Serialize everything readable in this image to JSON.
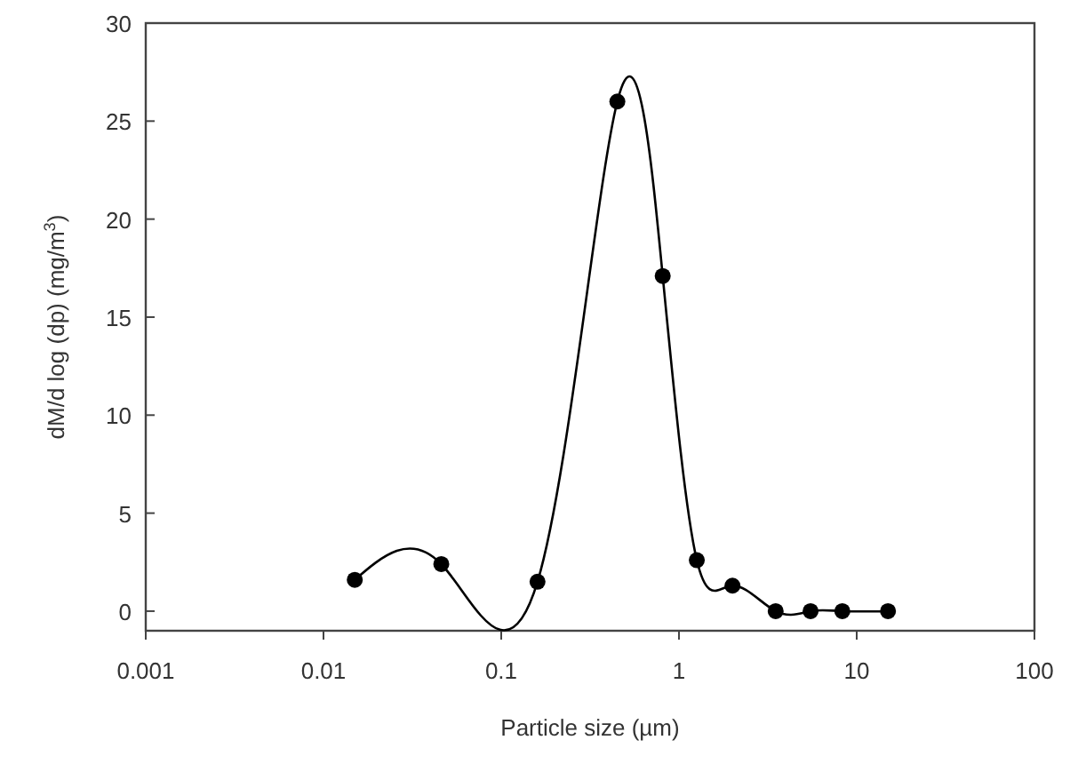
{
  "chart_data": {
    "type": "line",
    "xlabel": "Particle size (µm)",
    "ylabel": "dM/d log (dp) (mg/m$^{3}$)",
    "log": "x",
    "x": [
      0.015,
      0.046,
      0.16,
      0.45,
      0.81,
      1.26,
      2.0,
      3.5,
      5.5,
      8.3,
      15
    ],
    "series": [
      {
        "color": "#000000",
        "values": [
          1.6,
          2.4,
          1.5,
          26,
          17.1,
          2.6,
          1.3,
          0,
          0,
          0,
          0
        ]
      }
    ],
    "xlim": [
      0.001,
      100
    ],
    "xticks": [
      0.001,
      0.01,
      0.1,
      1,
      10,
      100
    ],
    "ylim": [
      -1,
      30
    ],
    "yticks": [
      0,
      5,
      10,
      15,
      20,
      25,
      30
    ],
    "marker": "circle",
    "line_style": "solid",
    "grid": false
  }
}
